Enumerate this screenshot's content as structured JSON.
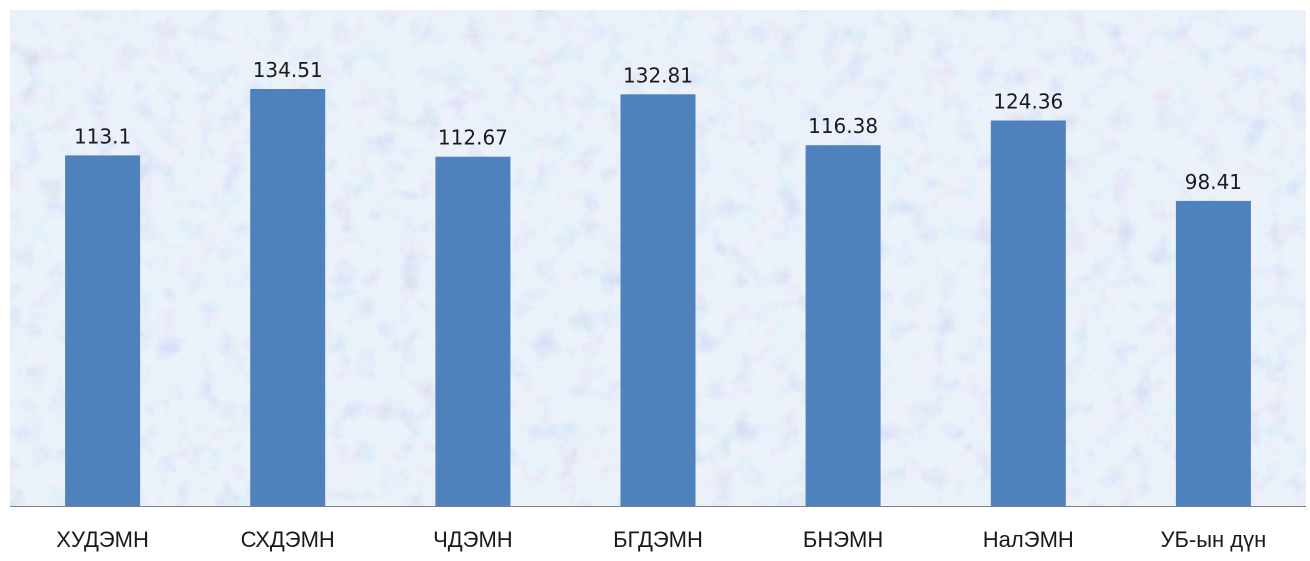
{
  "chart_data": {
    "type": "bar",
    "title": "",
    "xlabel": "",
    "ylabel": "",
    "categories": [
      "ХУДЭМН",
      "СХДЭМН",
      "ЧДЭМН",
      "БГДЭМН",
      "БНЭМН",
      "НалЭМН",
      "УБ-ын дүн"
    ],
    "values": [
      113.1,
      134.51,
      112.67,
      132.81,
      116.38,
      124.36,
      98.41
    ],
    "value_labels": [
      "113.1",
      "134.51",
      "112.67",
      "132.81",
      "116.38",
      "124.36",
      "98.41"
    ],
    "ylim": [
      0,
      160
    ],
    "grid": false,
    "legend": "none",
    "colors": {
      "bar": "#4f81bd",
      "plot_background": "#c9d8f0",
      "plot_texture_pink": "#e6cbe3",
      "plot_texture_white": "#f3f6fb",
      "axis": "#7f7f7f",
      "text": "#1a1a1a"
    }
  }
}
